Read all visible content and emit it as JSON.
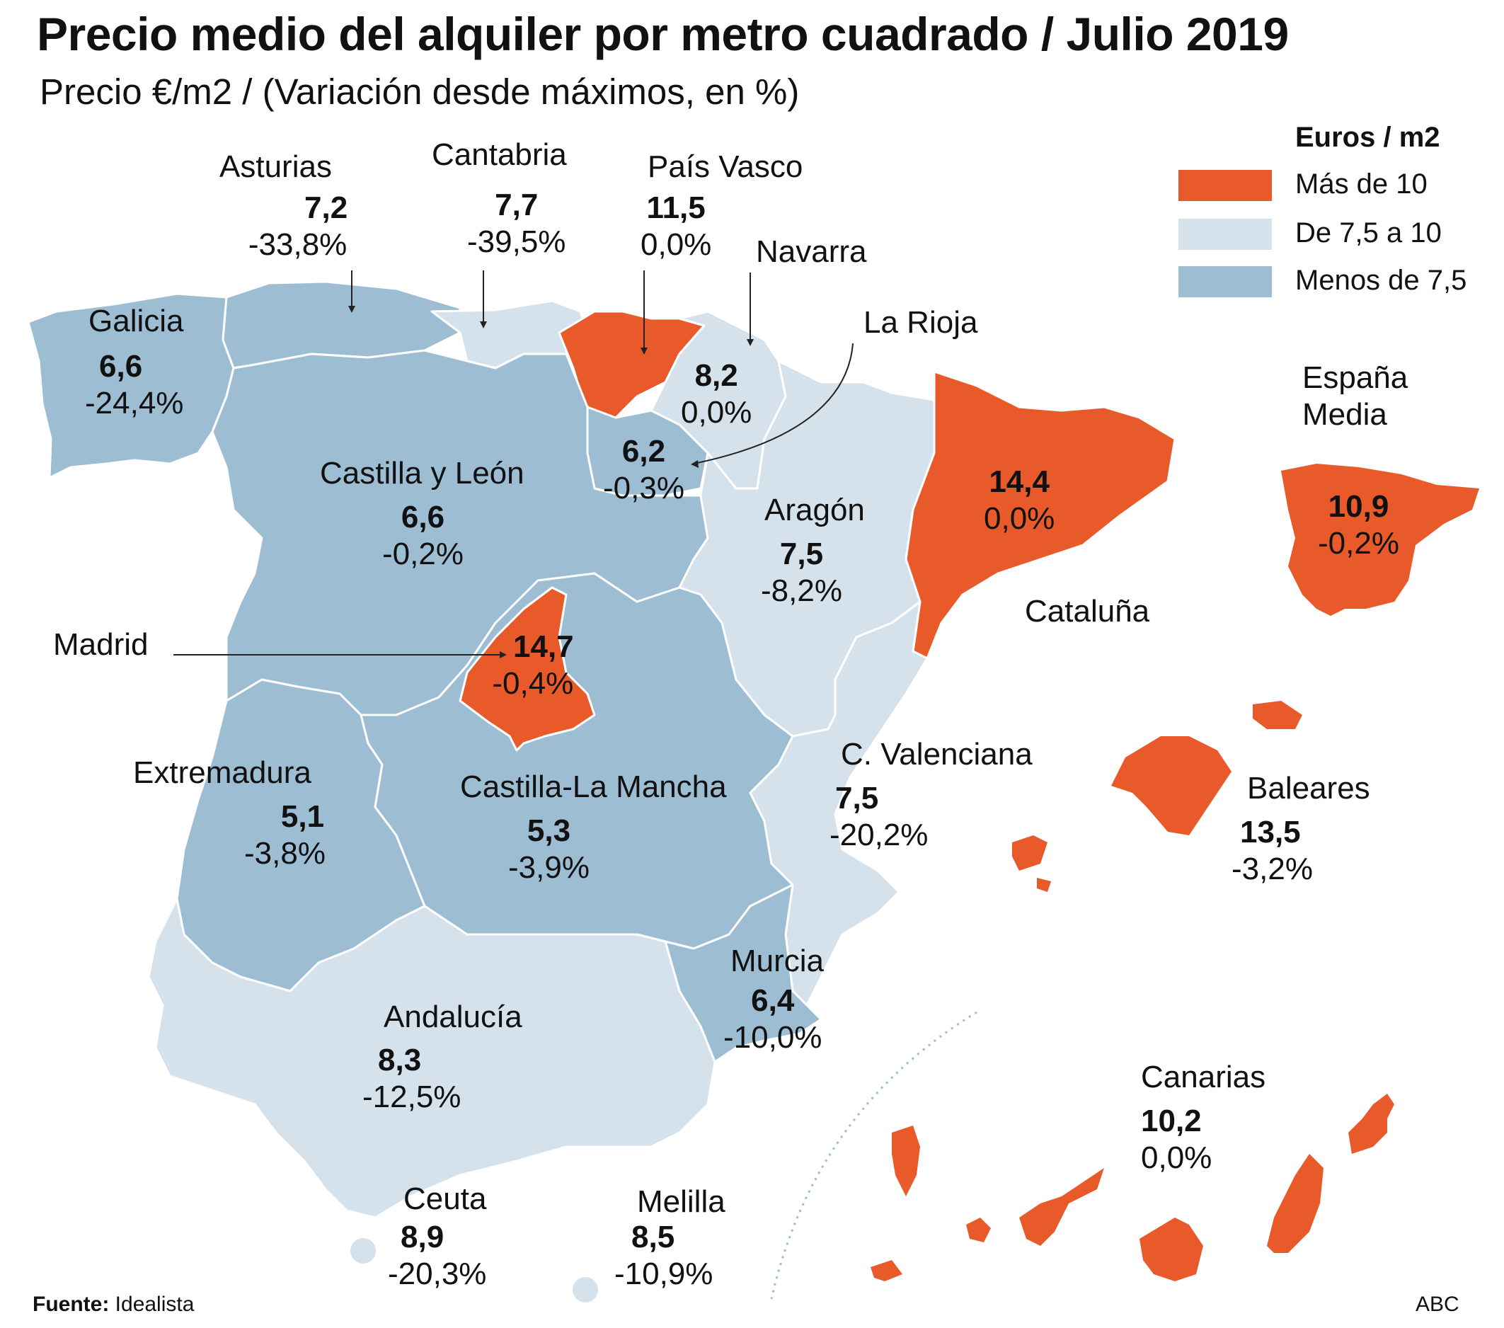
{
  "title": "Precio medio del alquiler por metro cuadrado / Julio 2019",
  "subtitle": "Precio €/m2 / (Variación desde máximos, en %)",
  "legend": {
    "title": "Euros / m2",
    "items": [
      {
        "label": "Más de 10",
        "color": "#e85a2a"
      },
      {
        "label": "De 7,5 a 10",
        "color": "#d5e2ec"
      },
      {
        "label": "Menos de 7,5",
        "color": "#9dbdd3"
      }
    ]
  },
  "colors": {
    "high": "#e85a2a",
    "mid": "#d5e2ec",
    "low": "#9dbdd3",
    "border": "#ffffff",
    "leader": "#222222"
  },
  "regions": {
    "galicia": {
      "name": "Galicia",
      "price": "6,6",
      "change": "-24,4%",
      "category": "low"
    },
    "asturias": {
      "name": "Asturias",
      "price": "7,2",
      "change": "-33,8%",
      "category": "low"
    },
    "cantabria": {
      "name": "Cantabria",
      "price": "7,7",
      "change": "-39,5%",
      "category": "mid"
    },
    "pais_vasco": {
      "name": "País Vasco",
      "price": "11,5",
      "change": "0,0%",
      "category": "high"
    },
    "navarra": {
      "name": "Navarra",
      "price": "8,2",
      "change": "0,0%",
      "category": "mid"
    },
    "la_rioja": {
      "name": "La Rioja",
      "price": "6,2",
      "change": "-0,3%",
      "category": "low"
    },
    "castilla_leon": {
      "name": "Castilla y León",
      "price": "6,6",
      "change": "-0,2%",
      "category": "low"
    },
    "aragon": {
      "name": "Aragón",
      "price": "7,5",
      "change": "-8,2%",
      "category": "mid"
    },
    "cataluna": {
      "name": "Cataluña",
      "price": "14,4",
      "change": "0,0%",
      "category": "high"
    },
    "madrid": {
      "name": "Madrid",
      "price": "14,7",
      "change": "-0,4%",
      "category": "high"
    },
    "extremadura": {
      "name": "Extremadura",
      "price": "5,1",
      "change": "-3,8%",
      "category": "low"
    },
    "castilla_la_mancha": {
      "name": "Castilla-La Mancha",
      "price": "5,3",
      "change": "-3,9%",
      "category": "low"
    },
    "valenciana": {
      "name": "C. Valenciana",
      "price": "7,5",
      "change": "-20,2%",
      "category": "mid"
    },
    "murcia": {
      "name": "Murcia",
      "price": "6,4",
      "change": "-10,0%",
      "category": "low"
    },
    "andalucia": {
      "name": "Andalucía",
      "price": "8,3",
      "change": "-12,5%",
      "category": "mid"
    },
    "baleares": {
      "name": "Baleares",
      "price": "13,5",
      "change": "-3,2%",
      "category": "high"
    },
    "canarias": {
      "name": "Canarias",
      "price": "10,2",
      "change": "0,0%",
      "category": "high"
    },
    "ceuta": {
      "name": "Ceuta",
      "price": "8,9",
      "change": "-20,3%",
      "category": "mid"
    },
    "melilla": {
      "name": "Melilla",
      "price": "8,5",
      "change": "-10,9%",
      "category": "mid"
    },
    "espana": {
      "name_line1": "España",
      "name_line2": "Media",
      "price": "10,9",
      "change": "-0,2%",
      "category": "high"
    }
  },
  "source": {
    "label": "Fuente:",
    "value": "Idealista"
  },
  "credit": "ABC"
}
